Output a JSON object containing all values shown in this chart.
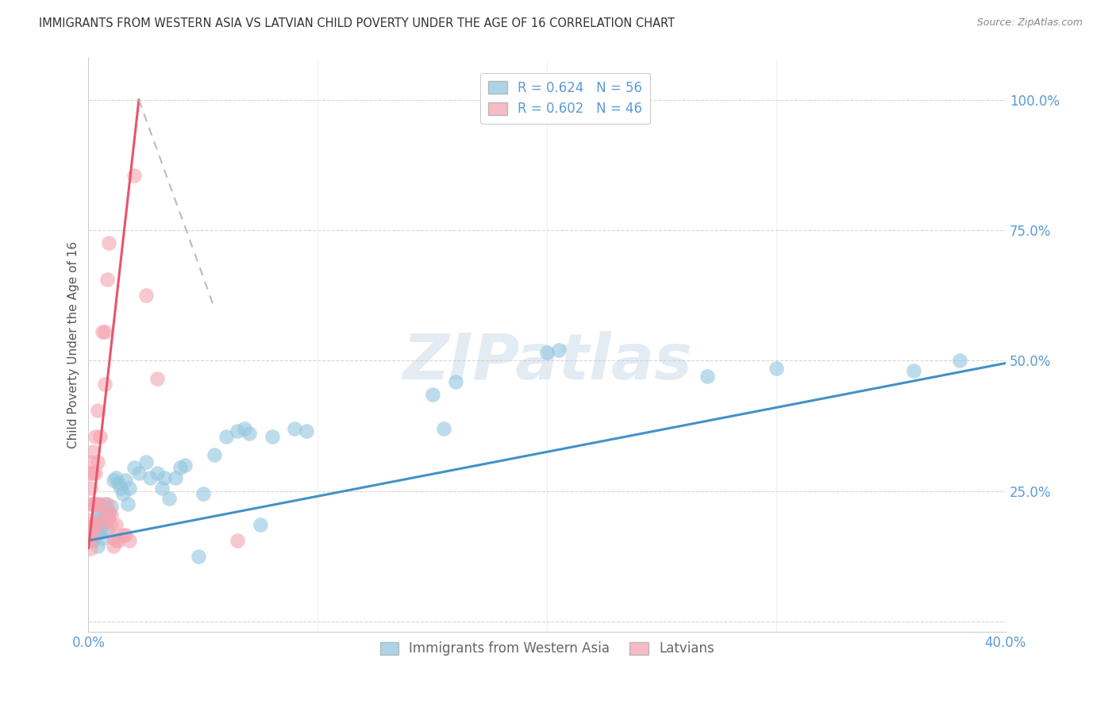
{
  "title": "IMMIGRANTS FROM WESTERN ASIA VS LATVIAN CHILD POVERTY UNDER THE AGE OF 16 CORRELATION CHART",
  "source": "Source: ZipAtlas.com",
  "ylabel": "Child Poverty Under the Age of 16",
  "yticks": [
    0.0,
    0.25,
    0.5,
    0.75,
    1.0
  ],
  "ytick_labels": [
    "",
    "25.0%",
    "50.0%",
    "75.0%",
    "100.0%"
  ],
  "xticks": [
    0.0,
    0.1,
    0.2,
    0.3,
    0.4
  ],
  "xlim": [
    0.0,
    0.4
  ],
  "ylim": [
    -0.02,
    1.08
  ],
  "legend_label_blue": "Immigrants from Western Asia",
  "legend_label_pink": "Latvians",
  "blue_color": "#92c5de",
  "pink_color": "#f4a4b0",
  "blue_line_color": "#4292c6",
  "pink_line_color": "#e8546a",
  "pink_dash_color": "#bbbbbb",
  "watermark": "ZIPatlas",
  "title_color": "#333333",
  "axis_label_color": "#5b9bd5",
  "blue_scatter": [
    [
      0.001,
      0.175
    ],
    [
      0.001,
      0.16
    ],
    [
      0.002,
      0.185
    ],
    [
      0.002,
      0.155
    ],
    [
      0.003,
      0.19
    ],
    [
      0.003,
      0.165
    ],
    [
      0.004,
      0.2
    ],
    [
      0.004,
      0.145
    ],
    [
      0.005,
      0.215
    ],
    [
      0.005,
      0.17
    ],
    [
      0.006,
      0.185
    ],
    [
      0.006,
      0.16
    ],
    [
      0.007,
      0.225
    ],
    [
      0.007,
      0.19
    ],
    [
      0.008,
      0.2
    ],
    [
      0.008,
      0.175
    ],
    [
      0.009,
      0.21
    ],
    [
      0.01,
      0.22
    ],
    [
      0.011,
      0.27
    ],
    [
      0.012,
      0.275
    ],
    [
      0.013,
      0.265
    ],
    [
      0.014,
      0.255
    ],
    [
      0.015,
      0.245
    ],
    [
      0.016,
      0.27
    ],
    [
      0.017,
      0.225
    ],
    [
      0.018,
      0.255
    ],
    [
      0.02,
      0.295
    ],
    [
      0.022,
      0.285
    ],
    [
      0.025,
      0.305
    ],
    [
      0.027,
      0.275
    ],
    [
      0.03,
      0.285
    ],
    [
      0.032,
      0.255
    ],
    [
      0.033,
      0.275
    ],
    [
      0.035,
      0.235
    ],
    [
      0.038,
      0.275
    ],
    [
      0.04,
      0.295
    ],
    [
      0.042,
      0.3
    ],
    [
      0.048,
      0.125
    ],
    [
      0.05,
      0.245
    ],
    [
      0.055,
      0.32
    ],
    [
      0.06,
      0.355
    ],
    [
      0.065,
      0.365
    ],
    [
      0.068,
      0.37
    ],
    [
      0.07,
      0.36
    ],
    [
      0.075,
      0.185
    ],
    [
      0.08,
      0.355
    ],
    [
      0.09,
      0.37
    ],
    [
      0.095,
      0.365
    ],
    [
      0.15,
      0.435
    ],
    [
      0.155,
      0.37
    ],
    [
      0.16,
      0.46
    ],
    [
      0.2,
      0.515
    ],
    [
      0.205,
      0.52
    ],
    [
      0.27,
      0.47
    ],
    [
      0.3,
      0.485
    ],
    [
      0.36,
      0.48
    ],
    [
      0.38,
      0.5
    ]
  ],
  "pink_scatter": [
    [
      0.001,
      0.305
    ],
    [
      0.001,
      0.285
    ],
    [
      0.001,
      0.255
    ],
    [
      0.001,
      0.225
    ],
    [
      0.001,
      0.195
    ],
    [
      0.001,
      0.175
    ],
    [
      0.001,
      0.155
    ],
    [
      0.001,
      0.14
    ],
    [
      0.002,
      0.325
    ],
    [
      0.002,
      0.285
    ],
    [
      0.002,
      0.225
    ],
    [
      0.002,
      0.185
    ],
    [
      0.002,
      0.165
    ],
    [
      0.003,
      0.355
    ],
    [
      0.003,
      0.285
    ],
    [
      0.003,
      0.225
    ],
    [
      0.003,
      0.185
    ],
    [
      0.004,
      0.405
    ],
    [
      0.004,
      0.305
    ],
    [
      0.004,
      0.225
    ],
    [
      0.004,
      0.185
    ],
    [
      0.005,
      0.355
    ],
    [
      0.005,
      0.225
    ],
    [
      0.006,
      0.555
    ],
    [
      0.007,
      0.555
    ],
    [
      0.007,
      0.455
    ],
    [
      0.007,
      0.205
    ],
    [
      0.008,
      0.655
    ],
    [
      0.008,
      0.225
    ],
    [
      0.008,
      0.195
    ],
    [
      0.009,
      0.725
    ],
    [
      0.009,
      0.205
    ],
    [
      0.01,
      0.205
    ],
    [
      0.01,
      0.185
    ],
    [
      0.011,
      0.16
    ],
    [
      0.011,
      0.145
    ],
    [
      0.012,
      0.185
    ],
    [
      0.012,
      0.155
    ],
    [
      0.013,
      0.155
    ],
    [
      0.015,
      0.165
    ],
    [
      0.016,
      0.165
    ],
    [
      0.018,
      0.155
    ],
    [
      0.02,
      0.855
    ],
    [
      0.025,
      0.625
    ],
    [
      0.03,
      0.465
    ],
    [
      0.065,
      0.155
    ]
  ],
  "blue_trendline": [
    [
      0.0,
      0.155
    ],
    [
      0.4,
      0.495
    ]
  ],
  "pink_trendline": [
    [
      0.0,
      0.14
    ],
    [
      0.022,
      1.0
    ]
  ],
  "pink_dash_trendline": [
    [
      0.022,
      1.0
    ],
    [
      0.055,
      0.6
    ]
  ]
}
